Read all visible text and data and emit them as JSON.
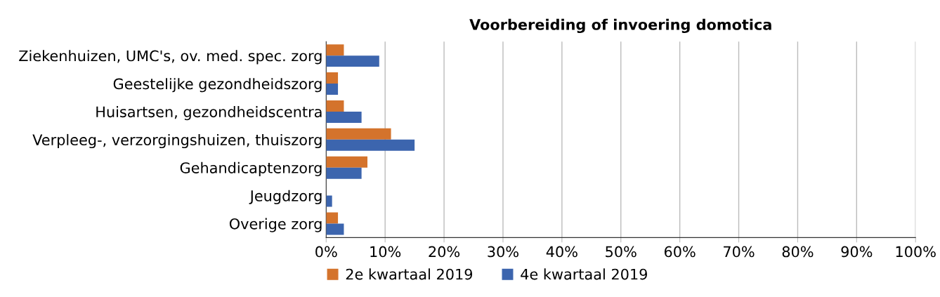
{
  "chart_data": {
    "type": "bar",
    "orientation": "horizontal",
    "title": "Voorbereiding of invoering domotica",
    "categories": [
      "Ziekenhuizen, UMC's, ov. med. spec. zorg",
      "Geestelijke gezondheidszorg",
      "Huisartsen, gezondheidscentra",
      "Verpleeg-, verzorgingshuizen, thuiszorg",
      "Gehandicaptenzorg",
      "Jeugdzorg",
      "Overige zorg"
    ],
    "series": [
      {
        "name": "2e kwartaal 2019",
        "color": "#d4732c",
        "values": [
          3,
          2,
          3,
          11,
          7,
          0,
          2
        ]
      },
      {
        "name": "4e kwartaal 2019",
        "color": "#3c65ae",
        "values": [
          9,
          2,
          6,
          15,
          6,
          1,
          3
        ]
      }
    ],
    "xlim": [
      0,
      100
    ],
    "xticks": [
      {
        "value": 0,
        "label": "0%"
      },
      {
        "value": 10,
        "label": "10%"
      },
      {
        "value": 20,
        "label": "20%"
      },
      {
        "value": 30,
        "label": "30%"
      },
      {
        "value": 40,
        "label": "40%"
      },
      {
        "value": 50,
        "label": "50%"
      },
      {
        "value": 60,
        "label": "60%"
      },
      {
        "value": 70,
        "label": "70%"
      },
      {
        "value": 80,
        "label": "80%"
      },
      {
        "value": 90,
        "label": "90%"
      },
      {
        "value": 100,
        "label": "100%"
      }
    ],
    "grid": "x",
    "legend": "bottom"
  }
}
